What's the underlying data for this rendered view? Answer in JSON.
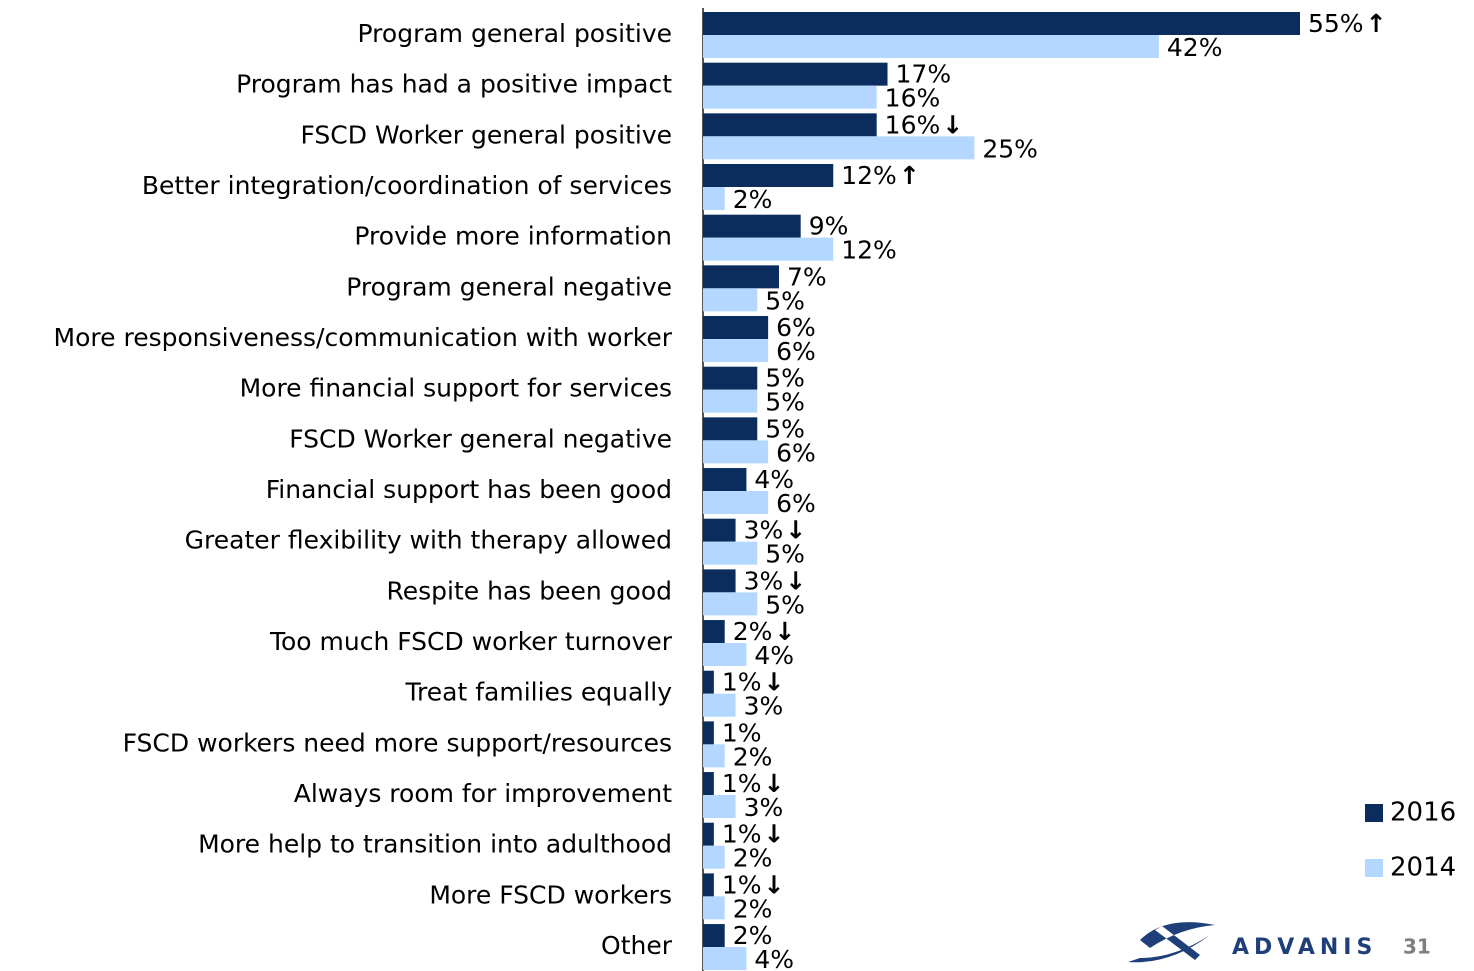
{
  "chart_data": {
    "type": "bar",
    "orientation": "horizontal",
    "categories": [
      "Program general positive",
      "Program has had a positive impact",
      "FSCD Worker general positive",
      "Better integration/coordination of services",
      "Provide more information",
      "Program general negative",
      "More responsiveness/communication with worker",
      "More financial support for services",
      "FSCD Worker general negative",
      "Financial support has been good",
      "Greater flexibility with therapy allowed",
      "Respite has been good",
      "Too much FSCD worker turnover",
      "Treat families equally",
      "FSCD workers need more support/resources",
      "Always room for improvement",
      "More help to transition into adulthood",
      "More FSCD workers",
      "Other"
    ],
    "series": [
      {
        "name": "2016",
        "color": "#0b2d5e",
        "values": [
          55,
          17,
          16,
          12,
          9,
          7,
          6,
          5,
          5,
          4,
          3,
          3,
          2,
          1,
          1,
          1,
          1,
          1,
          2
        ],
        "value_labels": [
          "55%",
          "17%",
          "16%",
          "12%",
          "9%",
          "7%",
          "6%",
          "5%",
          "5%",
          "4%",
          "3%",
          "3%",
          "2%",
          "1%",
          "1%",
          "1%",
          "1%",
          "1%",
          "2%"
        ],
        "markers": [
          "↑",
          null,
          "↓",
          "↑",
          null,
          null,
          null,
          null,
          null,
          null,
          "↓",
          "↓",
          "↓",
          "↓",
          null,
          "↓",
          "↓",
          "↓",
          null
        ]
      },
      {
        "name": "2014",
        "color": "#b3d7ff",
        "values": [
          42,
          16,
          25,
          2,
          12,
          5,
          6,
          5,
          6,
          6,
          5,
          5,
          4,
          3,
          2,
          3,
          2,
          2,
          4
        ],
        "value_labels": [
          "42%",
          "16%",
          "25%",
          "2%",
          "12%",
          "5%",
          "6%",
          "5%",
          "6%",
          "6%",
          "5%",
          "5%",
          "4%",
          "3%",
          "2%",
          "3%",
          "2%",
          "2%",
          "4%"
        ]
      }
    ],
    "xlim": [
      0,
      55
    ],
    "legend": "bottom-right"
  },
  "footer": {
    "logo": "ADVANIS",
    "page_number": "31"
  }
}
